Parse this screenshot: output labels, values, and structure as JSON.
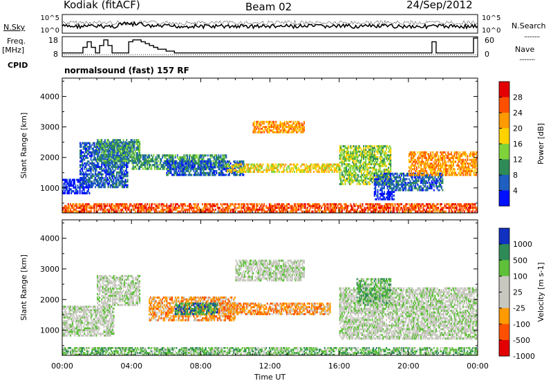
{
  "header": {
    "station": "Kodiak (fitACF)",
    "beam": "Beam 02",
    "date": "24/Sep/2012"
  },
  "side_labels": {
    "nsky": "N.Sky",
    "freq_top": "Freq.",
    "freq_unit": "[MHz]",
    "cpid": "CPID",
    "nsearch": "N.Search",
    "nave": "Nave",
    "dots": "........."
  },
  "cpid_text": "normalsound (fast) 157 RF",
  "noise_panel": {
    "left_ticks": [
      "10^5",
      "10^0"
    ],
    "right_ticks": [
      "10^5",
      "10^0"
    ]
  },
  "freq_panel": {
    "left_ticks": [
      "18",
      "8"
    ],
    "right_ticks": [
      "60",
      "0"
    ],
    "freq_mhz": [
      10,
      10,
      10,
      10,
      10,
      13,
      16,
      13,
      10,
      14,
      17,
      14,
      10,
      10,
      10,
      10,
      16,
      17,
      17,
      16,
      15,
      14,
      13,
      12,
      12,
      11,
      11,
      10,
      10,
      10,
      10,
      10,
      10,
      10,
      10,
      10,
      10,
      10,
      10,
      10,
      10,
      10,
      10,
      10,
      10,
      10,
      10,
      10,
      10,
      10,
      10,
      10,
      10,
      10,
      10,
      10,
      10,
      10,
      10,
      10,
      10,
      10,
      10,
      10,
      10,
      10,
      10,
      10,
      10,
      10,
      10,
      10,
      10,
      10,
      10,
      10,
      10,
      10,
      10,
      10,
      10,
      10,
      10,
      10,
      10,
      10,
      10,
      10,
      10,
      16,
      10,
      10,
      10,
      10,
      10,
      10,
      10,
      10,
      10,
      18
    ]
  },
  "chart_data": [
    {
      "type": "heatmap",
      "title": "Power",
      "ylabel": "Slant Range [km]",
      "ylim": [
        180,
        4600
      ],
      "yticks": [
        1000,
        2000,
        3000,
        4000
      ],
      "xlim": [
        0,
        24
      ],
      "colorbar": {
        "label": "Power [dB]",
        "ticks": [
          "28",
          "24",
          "20",
          "16",
          "12",
          "8",
          "4"
        ],
        "colors": [
          "#e30000",
          "#ff5000",
          "#ff9a00",
          "#ffd200",
          "#7fd23a",
          "#2e8b57",
          "#1f5fbf",
          "#0010ff"
        ]
      },
      "regions": [
        {
          "t": [
            0.0,
            1.6
          ],
          "r": [
            800,
            1300
          ],
          "level": 7
        },
        {
          "t": [
            1.0,
            3.8
          ],
          "r": [
            1000,
            2500
          ],
          "level": 6
        },
        {
          "t": [
            2.0,
            4.5
          ],
          "r": [
            1800,
            2600
          ],
          "level": 5
        },
        {
          "t": [
            4.0,
            9.5
          ],
          "r": [
            1600,
            2100
          ],
          "level": 5
        },
        {
          "t": [
            6.0,
            10.5
          ],
          "r": [
            1400,
            1900
          ],
          "level": 6
        },
        {
          "t": [
            9.5,
            16.0
          ],
          "r": [
            1500,
            1800
          ],
          "level": 3
        },
        {
          "t": [
            11.0,
            14.0
          ],
          "r": [
            2800,
            3200
          ],
          "level": 2
        },
        {
          "t": [
            16.0,
            19.0
          ],
          "r": [
            1100,
            2400
          ],
          "level": 4
        },
        {
          "t": [
            18.0,
            22.0
          ],
          "r": [
            900,
            1500
          ],
          "level": 6
        },
        {
          "t": [
            20.0,
            24.0
          ],
          "r": [
            1400,
            2200
          ],
          "level": 2
        },
        {
          "t": [
            18.0,
            19.2
          ],
          "r": [
            600,
            900
          ],
          "level": 7
        },
        {
          "t": [
            0.0,
            24.0
          ],
          "r": [
            200,
            500
          ],
          "level": 1
        }
      ]
    },
    {
      "type": "heatmap",
      "title": "Velocity",
      "ylabel": "Slant Range [km]",
      "ylim": [
        180,
        4600
      ],
      "yticks": [
        1000,
        2000,
        3000,
        4000
      ],
      "xlim": [
        0,
        24
      ],
      "xticks": [
        "00:00",
        "04:00",
        "08:00",
        "12:00",
        "16:00",
        "20:00",
        "00:00"
      ],
      "xlabel": "Time UT",
      "colorbar": {
        "label": "Velocity [m s-1]",
        "ticks": [
          "1000",
          "500",
          "100",
          "25",
          "-25",
          "-100",
          "-500",
          "-1000"
        ],
        "colors": [
          "#1030c0",
          "#2e8b57",
          "#5fc03a",
          "#c8c8c0",
          "#c8c8c0",
          "#ff9a00",
          "#ff5000",
          "#e30000"
        ]
      },
      "regions": [
        {
          "t": [
            0.0,
            3.0
          ],
          "r": [
            800,
            1800
          ],
          "level": 3
        },
        {
          "t": [
            2.0,
            4.5
          ],
          "r": [
            1800,
            2800
          ],
          "level": 3
        },
        {
          "t": [
            5.0,
            10.0
          ],
          "r": [
            1300,
            2100
          ],
          "level": 5
        },
        {
          "t": [
            6.5,
            9.0
          ],
          "r": [
            1500,
            1900
          ],
          "level": 1
        },
        {
          "t": [
            9.0,
            15.5
          ],
          "r": [
            1500,
            1900
          ],
          "level": 5
        },
        {
          "t": [
            10.0,
            14.0
          ],
          "r": [
            2600,
            3300
          ],
          "level": 3
        },
        {
          "t": [
            16.0,
            24.0
          ],
          "r": [
            700,
            2400
          ],
          "level": 3
        },
        {
          "t": [
            17.0,
            19.0
          ],
          "r": [
            1800,
            2700
          ],
          "level": 2
        },
        {
          "t": [
            0.0,
            24.0
          ],
          "r": [
            180,
            450
          ],
          "level": 2
        }
      ]
    }
  ]
}
